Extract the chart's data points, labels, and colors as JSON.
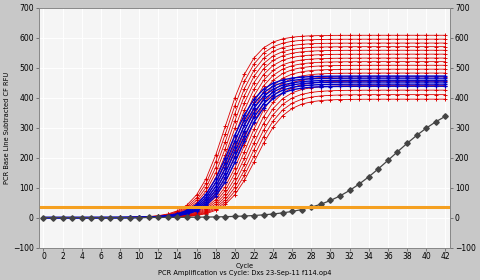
{
  "xlabel": "Cycle",
  "xlabel2": "PCR Amplification vs Cycle: Dxs 23-Sep-11 f114.op4",
  "ylabel": "PCR Base Line Subtracted CF RFU",
  "xlim": [
    -0.5,
    42.5
  ],
  "ylim": [
    -100,
    700
  ],
  "yticks": [
    -100,
    0,
    100,
    200,
    300,
    400,
    500,
    600,
    700
  ],
  "xticks": [
    0,
    2,
    4,
    6,
    8,
    10,
    12,
    14,
    16,
    18,
    20,
    22,
    24,
    26,
    28,
    30,
    32,
    34,
    36,
    38,
    40,
    42
  ],
  "threshold_y": 35,
  "threshold_color": "#F5A020",
  "red_plateau_levels": [
    608,
    595,
    582,
    570,
    558,
    545,
    532,
    520,
    508,
    495,
    482,
    470,
    455,
    440,
    425,
    410,
    395
  ],
  "red_midpoints": [
    19.0,
    19.2,
    19.4,
    19.6,
    19.8,
    20.0,
    20.2,
    20.4,
    20.6,
    20.8,
    21.0,
    21.2,
    21.4,
    21.6,
    21.8,
    22.0,
    22.2
  ],
  "blue_plateau_levels": [
    472,
    465,
    458,
    452,
    445,
    438
  ],
  "blue_midpoints": [
    19.5,
    19.7,
    19.9,
    20.1,
    20.3,
    20.5
  ],
  "background_color": "#c8c8c8",
  "plot_bg_color": "#f5f5f5",
  "grid_color": "white",
  "red_color": "#dd0000",
  "blue_color": "#0000cc",
  "black_color": "#444444",
  "sigmoid_steepness_red": 0.65,
  "sigmoid_steepness_blue": 0.65,
  "black_final": 410,
  "black_mid": 36.5,
  "black_steep": 0.28
}
